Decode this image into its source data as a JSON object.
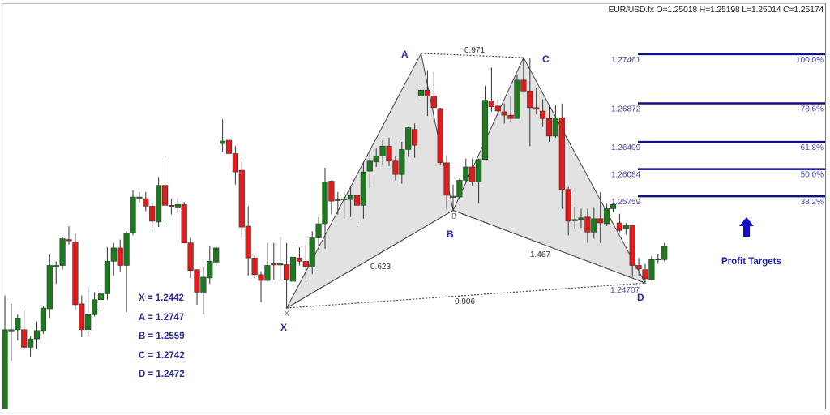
{
  "header": {
    "symbol": "EUR/USD.fx",
    "ohlc": "O=1.25018 H=1.25198 L=1.25014 C=1.25174"
  },
  "colors": {
    "bull": "#1e7a1e",
    "bear": "#e01c1c",
    "fib": "#10108a",
    "label": "#2c2c9a",
    "pattern_fill": "#e2e2e2"
  },
  "pattern_values": {
    "x": "X = 1.2442",
    "a": "A = 1.2747",
    "b": "B = 1.2559",
    "c": "C = 1.2742",
    "d": "D = 1.2472"
  },
  "profit": {
    "label": "Profit Targets",
    "icon": "arrow-up-icon"
  },
  "chart_data": {
    "type": "candlestick",
    "grid": false,
    "candles_ohlc": [
      [
        1.2321,
        1.2457,
        1.2321,
        1.2416
      ],
      [
        1.2416,
        1.2447,
        1.2379,
        1.2416
      ],
      [
        1.2416,
        1.2434,
        1.2403,
        1.243
      ],
      [
        1.2416,
        1.244,
        1.2392,
        1.2395
      ],
      [
        1.2395,
        1.2408,
        1.2384,
        1.2405
      ],
      [
        1.2405,
        1.2426,
        1.2393,
        1.2415
      ],
      [
        1.2415,
        1.2444,
        1.2411,
        1.2442
      ],
      [
        1.2441,
        1.2507,
        1.243,
        1.2493
      ],
      [
        1.2491,
        1.2498,
        1.2471,
        1.2493
      ],
      [
        1.2493,
        1.2527,
        1.2488,
        1.2525
      ],
      [
        1.2524,
        1.254,
        1.2518,
        1.2523
      ],
      [
        1.2521,
        1.2531,
        1.244,
        1.2446
      ],
      [
        1.2447,
        1.2457,
        1.2407,
        1.2416
      ],
      [
        1.2416,
        1.2467,
        1.2408,
        1.2434
      ],
      [
        1.2434,
        1.2461,
        1.2432,
        1.2452
      ],
      [
        1.2452,
        1.2466,
        1.2439,
        1.2459
      ],
      [
        1.2459,
        1.2515,
        1.2452,
        1.2498
      ],
      [
        1.2498,
        1.252,
        1.2481,
        1.2514
      ],
      [
        1.2514,
        1.2524,
        1.2485,
        1.2493
      ],
      [
        1.2493,
        1.2534,
        1.2437,
        1.2532
      ],
      [
        1.2532,
        1.2583,
        1.2529,
        1.2575
      ],
      [
        1.2575,
        1.2581,
        1.2568,
        1.2575
      ],
      [
        1.2573,
        1.2581,
        1.2558,
        1.2564
      ],
      [
        1.2564,
        1.2568,
        1.2538,
        1.2546
      ],
      [
        1.2545,
        1.2599,
        1.2539,
        1.2589
      ],
      [
        1.2589,
        1.2624,
        1.2542,
        1.2565
      ],
      [
        1.2565,
        1.2573,
        1.2554,
        1.2564
      ],
      [
        1.2562,
        1.2573,
        1.2557,
        1.2566
      ],
      [
        1.2566,
        1.2569,
        1.252,
        1.252
      ],
      [
        1.252,
        1.2526,
        1.2478,
        1.2487
      ],
      [
        1.2488,
        1.2488,
        1.2446,
        1.2461
      ],
      [
        1.2461,
        1.2491,
        1.2434,
        1.2479
      ],
      [
        1.2478,
        1.2516,
        1.2471,
        1.2498
      ],
      [
        1.2497,
        1.2516,
        1.2493,
        1.2514
      ],
      [
        1.2639,
        1.2668,
        1.2629,
        1.2642
      ],
      [
        1.2643,
        1.2646,
        1.2617,
        1.2627
      ],
      [
        1.2627,
        1.2636,
        1.259,
        1.2605
      ],
      [
        1.2607,
        1.2618,
        1.2526,
        1.2539
      ],
      [
        1.254,
        1.2564,
        1.2481,
        1.2502
      ],
      [
        1.2502,
        1.2505,
        1.2478,
        1.2482
      ],
      [
        1.2482,
        1.2486,
        1.2449,
        1.2475
      ],
      [
        1.2475,
        1.252,
        1.2474,
        1.2493
      ],
      [
        1.2495,
        1.252,
        1.2476,
        1.2494
      ],
      [
        1.2495,
        1.2527,
        1.2476,
        1.2495
      ],
      [
        1.2494,
        1.252,
        1.2442,
        1.2476
      ],
      [
        1.2474,
        1.2518,
        1.2469,
        1.2503
      ],
      [
        1.2502,
        1.2515,
        1.2493,
        1.2498
      ],
      [
        1.2498,
        1.2518,
        1.2476,
        1.2491
      ],
      [
        1.2491,
        1.2534,
        1.2483,
        1.2526
      ],
      [
        1.2526,
        1.2551,
        1.2515,
        1.2543
      ],
      [
        1.2543,
        1.261,
        1.2513,
        1.2593
      ],
      [
        1.2594,
        1.2595,
        1.2554,
        1.257
      ],
      [
        1.2572,
        1.2581,
        1.2554,
        1.2572
      ],
      [
        1.2572,
        1.2584,
        1.2549,
        1.2573
      ],
      [
        1.2572,
        1.2588,
        1.2551,
        1.2577
      ],
      [
        1.2577,
        1.2586,
        1.2541,
        1.2565
      ],
      [
        1.2565,
        1.2617,
        1.2549,
        1.2605
      ],
      [
        1.2606,
        1.2631,
        1.2586,
        1.2618
      ],
      [
        1.2617,
        1.2633,
        1.2611,
        1.2624
      ],
      [
        1.2624,
        1.2643,
        1.2614,
        1.2636
      ],
      [
        1.2636,
        1.2646,
        1.2612,
        1.2618
      ],
      [
        1.2618,
        1.2624,
        1.2595,
        1.2602
      ],
      [
        1.2602,
        1.2641,
        1.2591,
        1.2632
      ],
      [
        1.2632,
        1.2659,
        1.2623,
        1.2658
      ],
      [
        1.2656,
        1.2663,
        1.2622,
        1.2637
      ],
      [
        1.2696,
        1.2747,
        1.2694,
        1.2703
      ],
      [
        1.2703,
        1.2727,
        1.2672,
        1.2696
      ],
      [
        1.2696,
        1.2725,
        1.2665,
        1.2682
      ],
      [
        1.2681,
        1.2682,
        1.2614,
        1.2616
      ],
      [
        1.2616,
        1.2625,
        1.256,
        1.2577
      ],
      [
        1.2576,
        1.259,
        1.2559,
        1.2576
      ],
      [
        1.2575,
        1.2597,
        1.2572,
        1.2595
      ],
      [
        1.2595,
        1.2621,
        1.2593,
        1.2611
      ],
      [
        1.2611,
        1.2621,
        1.2588,
        1.2593
      ],
      [
        1.2593,
        1.2621,
        1.2567,
        1.262
      ],
      [
        1.262,
        1.2708,
        1.262,
        1.2691
      ],
      [
        1.269,
        1.273,
        1.2677,
        1.2683
      ],
      [
        1.2684,
        1.2692,
        1.2672,
        1.2678
      ],
      [
        1.2677,
        1.2687,
        1.2663,
        1.2673
      ],
      [
        1.2673,
        1.2696,
        1.2665,
        1.2669
      ],
      [
        1.2669,
        1.2722,
        1.2669,
        1.2715
      ],
      [
        1.2715,
        1.2742,
        1.2704,
        1.2702
      ],
      [
        1.2702,
        1.2741,
        1.2636,
        1.2682
      ],
      [
        1.2682,
        1.2706,
        1.2674,
        1.268
      ],
      [
        1.2678,
        1.2692,
        1.2659,
        1.2669
      ],
      [
        1.2669,
        1.2685,
        1.2641,
        1.2648
      ],
      [
        1.2648,
        1.2685,
        1.2646,
        1.267
      ],
      [
        1.267,
        1.2687,
        1.2561,
        1.2584
      ],
      [
        1.2584,
        1.2587,
        1.2529,
        1.2546
      ],
      [
        1.2547,
        1.2563,
        1.2537,
        1.2548
      ],
      [
        1.2548,
        1.2561,
        1.2538,
        1.255
      ],
      [
        1.2551,
        1.2561,
        1.252,
        1.2533
      ],
      [
        1.2533,
        1.2562,
        1.2525,
        1.2549
      ],
      [
        1.2549,
        1.2581,
        1.252,
        1.2544
      ],
      [
        1.2543,
        1.2567,
        1.254,
        1.2561
      ],
      [
        1.2561,
        1.2568,
        1.2557,
        1.2566
      ],
      [
        1.2544,
        1.2555,
        1.2533,
        1.2535
      ],
      [
        1.2537,
        1.2544,
        1.253,
        1.2541
      ],
      [
        1.2541,
        1.2541,
        1.2479,
        1.2493
      ],
      [
        1.2493,
        1.2502,
        1.2481,
        1.2489
      ],
      [
        1.2488,
        1.2495,
        1.2472,
        1.2477
      ],
      [
        1.2476,
        1.2504,
        1.2475,
        1.25
      ],
      [
        1.25,
        1.2507,
        1.2495,
        1.2501
      ],
      [
        1.25,
        1.252,
        1.2498,
        1.2516
      ]
    ],
    "pattern": {
      "points": [
        {
          "label": "X",
          "price": 1.2442,
          "candle": 44
        },
        {
          "label": "A",
          "price": 1.2747,
          "candle": 65
        },
        {
          "label": "B",
          "price": 1.2559,
          "candle": 70
        },
        {
          "label": "C",
          "price": 1.2742,
          "candle": 81
        },
        {
          "label": "D",
          "price": 1.2472,
          "candle": 100
        }
      ],
      "ratios": {
        "xb": "0.623",
        "ac": "0.971",
        "bd": "1.467",
        "xd": "0.906"
      },
      "d_level": "1.24707"
    },
    "fib_levels": [
      {
        "price": "1.27461",
        "pct": "100.0%"
      },
      {
        "price": "1.26872",
        "pct": "78.6%"
      },
      {
        "price": "1.26409",
        "pct": "61.8%"
      },
      {
        "price": "1.26084",
        "pct": "50.0%"
      },
      {
        "price": "1.25759",
        "pct": "38.2%"
      }
    ]
  }
}
